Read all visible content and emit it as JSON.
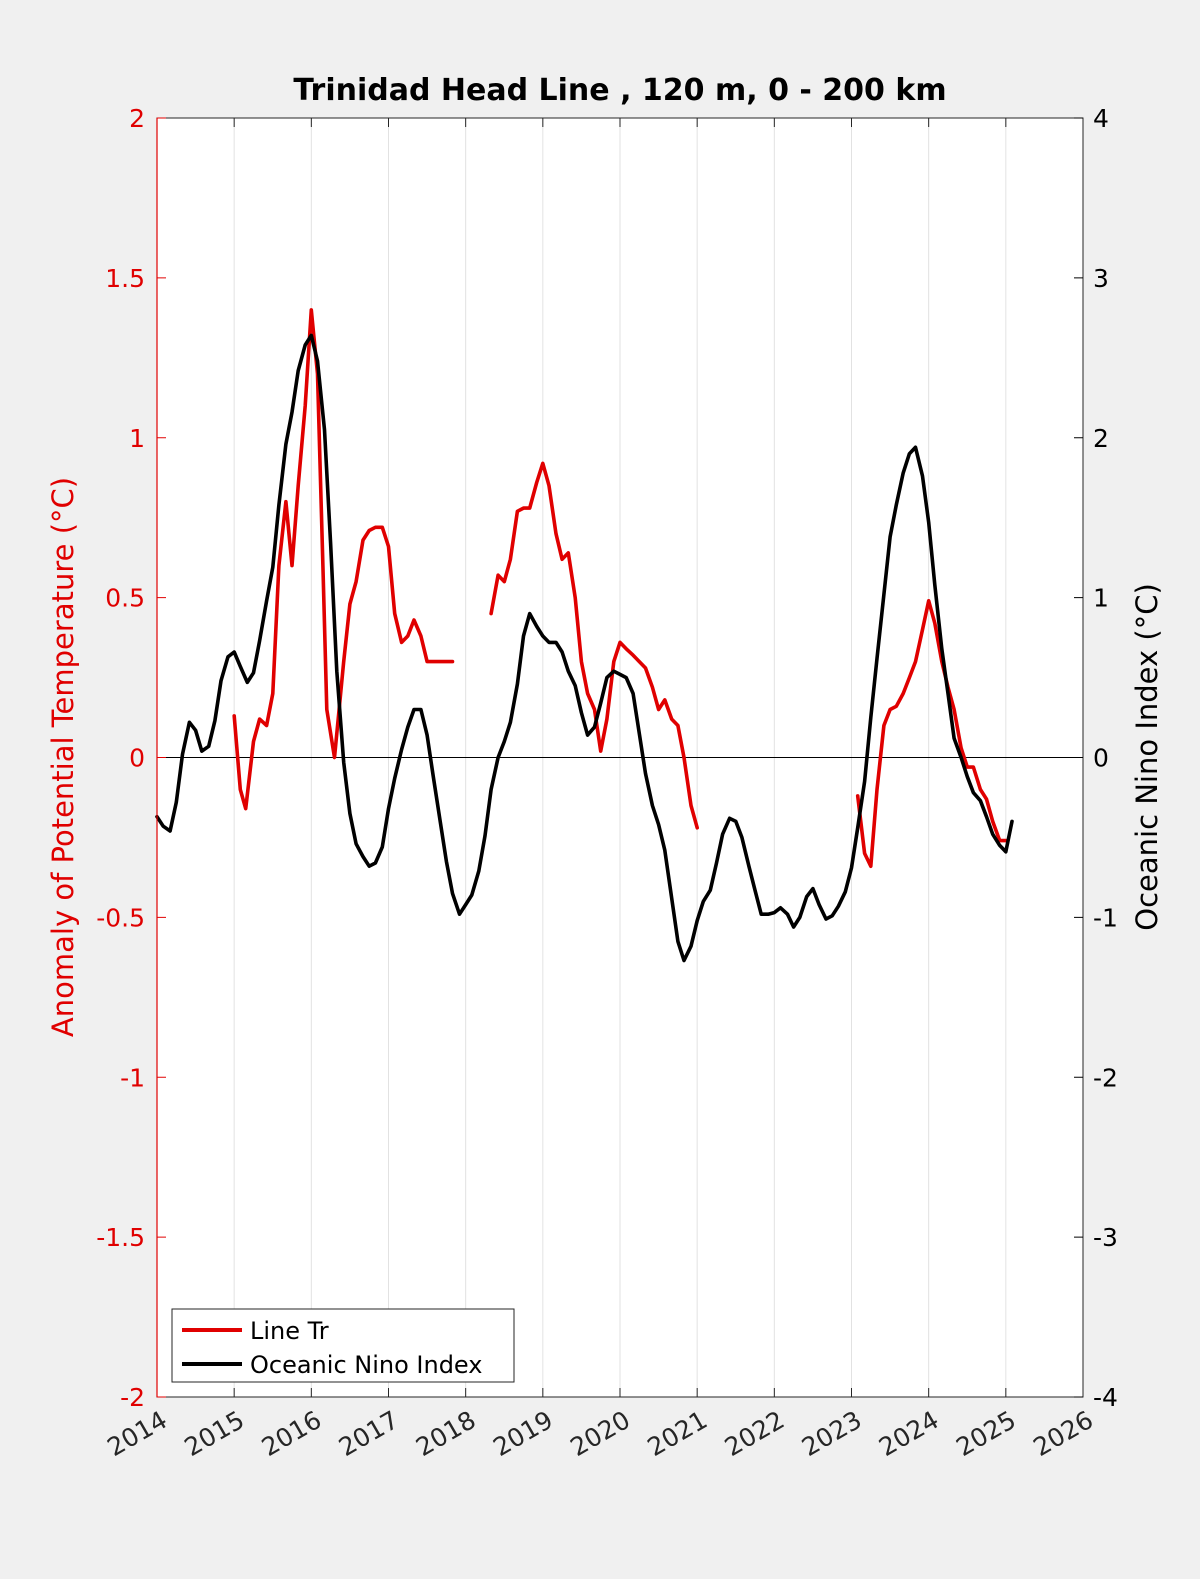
{
  "chart_data": {
    "type": "line",
    "title": "Trinidad Head Line , 120 m, 0 - 200 km",
    "xlabel": "",
    "ylabel_left": "Anomaly of Potential Temperature (°C)",
    "ylabel_right": "Oceanic Nino Index (°C)",
    "xlim": [
      2014,
      2026
    ],
    "ylim_left": [
      -2,
      2
    ],
    "ylim_right": [
      -4,
      4
    ],
    "x_ticks": [
      2014,
      2015,
      2016,
      2017,
      2018,
      2019,
      2020,
      2021,
      2022,
      2023,
      2024,
      2025,
      2026
    ],
    "x_tick_labels": [
      "2014",
      "2015",
      "2016",
      "2017",
      "2018",
      "2019",
      "2020",
      "2021",
      "2022",
      "2023",
      "2024",
      "2025",
      "2026"
    ],
    "y_left_ticks": [
      2,
      1.5,
      1,
      0.5,
      0,
      -0.5,
      -1,
      -1.5,
      -2
    ],
    "y_left_tick_labels": [
      "2",
      "1.5",
      "1",
      "0.5",
      "0",
      "-0.5",
      "-1",
      "-1.5",
      "-2"
    ],
    "y_right_ticks": [
      4,
      3,
      2,
      1,
      0,
      -1,
      -2,
      -3,
      -4
    ],
    "y_right_tick_labels": [
      "4",
      "3",
      "2",
      "1",
      "0",
      "-1",
      "-2",
      "-3",
      "-4"
    ],
    "grid": "vertical",
    "zero_line": true,
    "legend_position": "bottom-left",
    "colors": {
      "line_tr": "#e00000",
      "oni": "#000000",
      "left_axis": "#e00000",
      "right_axis": "#000000",
      "grid": "#e2e2e2",
      "figure_bg": "#f0f0f0",
      "plot_bg": "#ffffff"
    },
    "series": [
      {
        "name": "Line Tr",
        "axis": "left",
        "color": "#e00000",
        "segments": [
          {
            "x": [
              2015.0,
              2015.08,
              2015.15,
              2015.25,
              2015.33,
              2015.42,
              2015.5,
              2015.58,
              2015.67,
              2015.75,
              2015.83,
              2015.92,
              2016.0,
              2016.08,
              2016.15,
              2016.2,
              2016.3,
              2016.42,
              2016.5,
              2016.58,
              2016.67,
              2016.75,
              2016.83,
              2016.92,
              2017.0,
              2017.08,
              2017.17,
              2017.25,
              2017.33,
              2017.42,
              2017.5,
              2017.58,
              2017.67,
              2017.75,
              2017.83
            ],
            "y": [
              0.13,
              -0.1,
              -0.16,
              0.05,
              0.12,
              0.1,
              0.2,
              0.6,
              0.8,
              0.6,
              0.85,
              1.1,
              1.4,
              1.2,
              0.6,
              0.15,
              0.0,
              0.3,
              0.48,
              0.55,
              0.68,
              0.71,
              0.72,
              0.72,
              0.66,
              0.45,
              0.36,
              0.38,
              0.43,
              0.38,
              0.3,
              0.3,
              0.3,
              0.3,
              0.3
            ]
          },
          {
            "x": [
              2018.33,
              2018.42,
              2018.5,
              2018.58,
              2018.67,
              2018.75,
              2018.83,
              2018.92,
              2019.0,
              2019.08,
              2019.17,
              2019.25,
              2019.33,
              2019.42,
              2019.5,
              2019.58,
              2019.67,
              2019.75,
              2019.83,
              2019.92,
              2020.0,
              2020.08,
              2020.17,
              2020.25,
              2020.33,
              2020.42,
              2020.5,
              2020.58,
              2020.67,
              2020.75,
              2020.83,
              2020.92,
              2021.0
            ],
            "y": [
              0.45,
              0.57,
              0.55,
              0.62,
              0.77,
              0.78,
              0.78,
              0.86,
              0.92,
              0.85,
              0.7,
              0.62,
              0.64,
              0.5,
              0.3,
              0.2,
              0.15,
              0.02,
              0.12,
              0.3,
              0.36,
              0.34,
              0.32,
              0.3,
              0.28,
              0.22,
              0.15,
              0.18,
              0.12,
              0.1,
              0.0,
              -0.15,
              -0.22
            ]
          },
          {
            "x": [
              2023.08,
              2023.17,
              2023.25,
              2023.33,
              2023.42,
              2023.5,
              2023.58,
              2023.67,
              2023.75,
              2023.83,
              2023.92,
              2024.0,
              2024.08,
              2024.17,
              2024.25,
              2024.33,
              2024.42,
              2024.5,
              2024.58,
              2024.67,
              2024.75,
              2024.83,
              2024.92,
              2025.0
            ],
            "y": [
              -0.12,
              -0.3,
              -0.34,
              -0.1,
              0.1,
              0.15,
              0.16,
              0.2,
              0.25,
              0.3,
              0.4,
              0.49,
              0.42,
              0.3,
              0.22,
              0.15,
              0.03,
              -0.03,
              -0.03,
              -0.1,
              -0.13,
              -0.2,
              -0.26,
              -0.26
            ]
          }
        ]
      },
      {
        "name": "Oceanic Nino Index",
        "axis": "right",
        "color": "#000000",
        "segments": [
          {
            "x": [
              2014.0,
              2014.08,
              2014.17,
              2014.25,
              2014.33,
              2014.42,
              2014.5,
              2014.58,
              2014.67,
              2014.75,
              2014.83,
              2014.92,
              2015.0,
              2015.08,
              2015.17,
              2015.25,
              2015.33,
              2015.42,
              2015.5,
              2015.58,
              2015.67,
              2015.75,
              2015.83,
              2015.92,
              2016.0,
              2016.08,
              2016.17,
              2016.25,
              2016.33,
              2016.42,
              2016.5,
              2016.58,
              2016.67,
              2016.75,
              2016.83,
              2016.92,
              2017.0,
              2017.08,
              2017.17,
              2017.25,
              2017.33,
              2017.42,
              2017.5,
              2017.58,
              2017.67,
              2017.75,
              2017.83,
              2017.92,
              2018.0,
              2018.08,
              2018.17,
              2018.25,
              2018.33,
              2018.42,
              2018.5,
              2018.58,
              2018.67,
              2018.75,
              2018.83,
              2018.92,
              2019.0,
              2019.08,
              2019.17,
              2019.25,
              2019.33,
              2019.42,
              2019.5,
              2019.58,
              2019.67,
              2019.75,
              2019.83,
              2019.92,
              2020.0,
              2020.08,
              2020.17,
              2020.25,
              2020.33,
              2020.42,
              2020.5,
              2020.58,
              2020.67,
              2020.75,
              2020.83,
              2020.92,
              2021.0,
              2021.08,
              2021.17,
              2021.25,
              2021.33,
              2021.42,
              2021.5,
              2021.58,
              2021.67,
              2021.75,
              2021.83,
              2021.92,
              2022.0,
              2022.08,
              2022.17,
              2022.25,
              2022.33,
              2022.42,
              2022.5,
              2022.58,
              2022.67,
              2022.75,
              2022.83,
              2022.92,
              2023.0,
              2023.08,
              2023.17,
              2023.25,
              2023.33,
              2023.42,
              2023.5,
              2023.58,
              2023.67,
              2023.75,
              2023.83,
              2023.92,
              2024.0,
              2024.08,
              2024.17,
              2024.25,
              2024.33,
              2024.42,
              2024.5,
              2024.58,
              2024.67,
              2024.75,
              2024.83,
              2024.92,
              2025.0,
              2025.08
            ],
            "y": [
              -0.37,
              -0.43,
              -0.46,
              -0.28,
              0.02,
              0.22,
              0.17,
              0.04,
              0.07,
              0.23,
              0.48,
              0.63,
              0.66,
              0.57,
              0.47,
              0.53,
              0.73,
              0.98,
              1.19,
              1.58,
              1.96,
              2.16,
              2.42,
              2.58,
              2.64,
              2.48,
              2.05,
              1.34,
              0.54,
              -0.03,
              -0.35,
              -0.54,
              -0.62,
              -0.68,
              -0.66,
              -0.56,
              -0.32,
              -0.13,
              0.05,
              0.19,
              0.3,
              0.3,
              0.14,
              -0.12,
              -0.4,
              -0.65,
              -0.85,
              -0.98,
              -0.92,
              -0.86,
              -0.71,
              -0.49,
              -0.2,
              0.0,
              0.1,
              0.22,
              0.46,
              0.76,
              0.9,
              0.82,
              0.76,
              0.72,
              0.72,
              0.66,
              0.54,
              0.45,
              0.28,
              0.14,
              0.19,
              0.34,
              0.5,
              0.54,
              0.52,
              0.5,
              0.4,
              0.15,
              -0.1,
              -0.3,
              -0.42,
              -0.58,
              -0.88,
              -1.15,
              -1.27,
              -1.18,
              -1.02,
              -0.9,
              -0.83,
              -0.66,
              -0.48,
              -0.38,
              -0.4,
              -0.5,
              -0.68,
              -0.83,
              -0.98,
              -0.98,
              -0.97,
              -0.94,
              -0.98,
              -1.06,
              -1.0,
              -0.87,
              -0.82,
              -0.92,
              -1.01,
              -0.99,
              -0.93,
              -0.84,
              -0.69,
              -0.44,
              -0.15,
              0.25,
              0.62,
              1.02,
              1.38,
              1.58,
              1.78,
              1.9,
              1.94,
              1.76,
              1.47,
              1.08,
              0.68,
              0.4,
              0.12,
              0.0,
              -0.12,
              -0.22,
              -0.27,
              -0.37,
              -0.48,
              -0.55,
              -0.59,
              -0.4
            ]
          }
        ]
      }
    ]
  }
}
